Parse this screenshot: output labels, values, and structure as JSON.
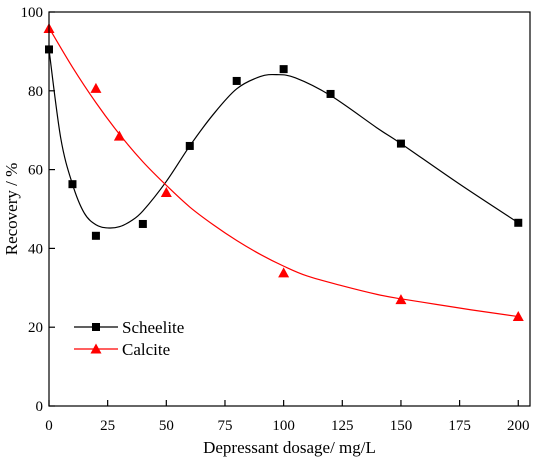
{
  "chart_data": {
    "type": "scatter",
    "title": "",
    "xlabel": "Depressant dosage/ mg/L",
    "ylabel": "Recovery / %",
    "xlim": [
      0,
      205
    ],
    "ylim": [
      0,
      100
    ],
    "xticks": [
      0,
      25,
      50,
      75,
      100,
      125,
      150,
      175,
      200
    ],
    "yticks": [
      0,
      20,
      40,
      60,
      80,
      100
    ],
    "grid": false,
    "legend_position": "bottom-left",
    "series": [
      {
        "name": "Scheelite",
        "marker": "square",
        "color": "#000000",
        "points": [
          {
            "x": 0,
            "y": 90.5
          },
          {
            "x": 10,
            "y": 56.3
          },
          {
            "x": 20,
            "y": 43.2
          },
          {
            "x": 40,
            "y": 46.2
          },
          {
            "x": 60,
            "y": 66.0
          },
          {
            "x": 80,
            "y": 82.5
          },
          {
            "x": 100,
            "y": 85.5
          },
          {
            "x": 120,
            "y": 79.2
          },
          {
            "x": 150,
            "y": 66.6
          },
          {
            "x": 200,
            "y": 46.5
          }
        ],
        "fit_curve": [
          [
            0,
            90.5
          ],
          [
            5,
            68
          ],
          [
            10,
            56.3
          ],
          [
            15,
            49
          ],
          [
            20,
            46.0
          ],
          [
            25,
            45.2
          ],
          [
            30,
            45.5
          ],
          [
            35,
            47
          ],
          [
            40,
            49.5
          ],
          [
            50,
            57
          ],
          [
            60,
            66.0
          ],
          [
            70,
            74
          ],
          [
            80,
            80.5
          ],
          [
            90,
            83.6
          ],
          [
            97,
            84.1
          ],
          [
            105,
            83.3
          ],
          [
            120,
            78.8
          ],
          [
            140,
            70.5
          ],
          [
            150,
            66.6
          ],
          [
            175,
            56.3
          ],
          [
            200,
            46.5
          ]
        ]
      },
      {
        "name": "Calcite",
        "marker": "triangle",
        "color": "#ff0000",
        "points": [
          {
            "x": 0,
            "y": 95.8
          },
          {
            "x": 20,
            "y": 80.6
          },
          {
            "x": 30,
            "y": 68.5
          },
          {
            "x": 50,
            "y": 54.2
          },
          {
            "x": 100,
            "y": 33.8
          },
          {
            "x": 150,
            "y": 27.0
          },
          {
            "x": 200,
            "y": 22.7
          }
        ],
        "fit_curve": [
          [
            0,
            96
          ],
          [
            10,
            86
          ],
          [
            20,
            77
          ],
          [
            30,
            69
          ],
          [
            40,
            62
          ],
          [
            50,
            56
          ],
          [
            60,
            50.5
          ],
          [
            70,
            46
          ],
          [
            80,
            42
          ],
          [
            90,
            38.5
          ],
          [
            100,
            35.5
          ],
          [
            110,
            33
          ],
          [
            125,
            30.5
          ],
          [
            140,
            28.3
          ],
          [
            150,
            27.2
          ],
          [
            165,
            25.8
          ],
          [
            180,
            24.4
          ],
          [
            200,
            22.7
          ]
        ]
      }
    ]
  }
}
